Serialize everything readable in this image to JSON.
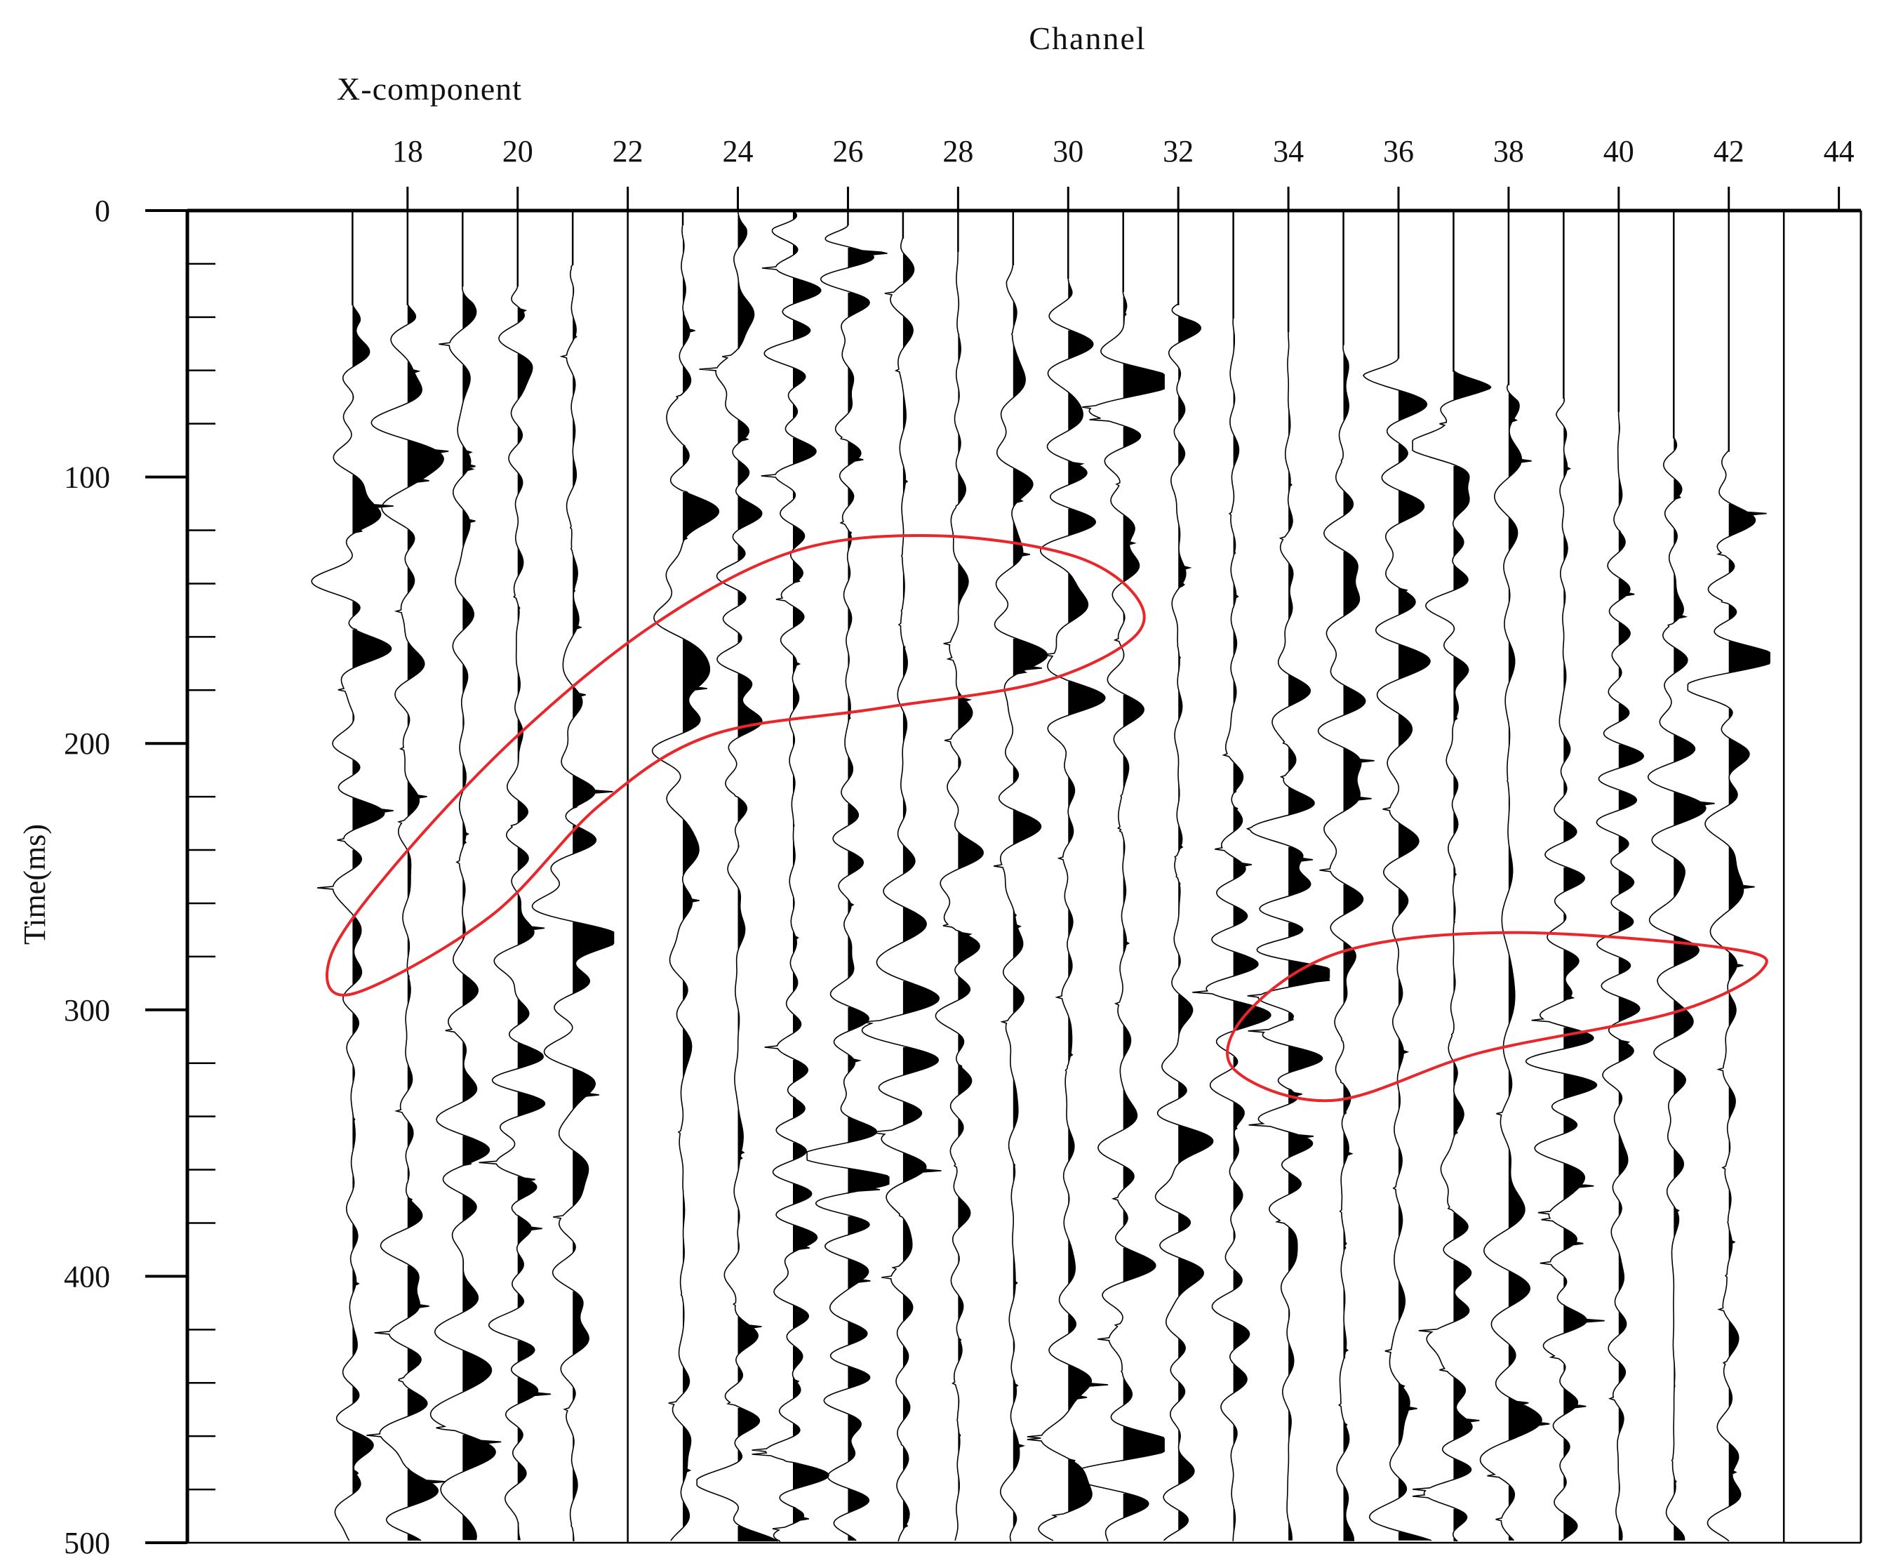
{
  "chart_data": {
    "type": "seismic-wiggle",
    "title": "Channel",
    "panel_label": "X-component",
    "xlabel": "Channel",
    "ylabel": "Time(ms)",
    "x_tick_labels": [
      "18",
      "20",
      "22",
      "24",
      "26",
      "28",
      "30",
      "32",
      "34",
      "36",
      "38",
      "40",
      "42",
      "44"
    ],
    "x_ticks": [
      18,
      20,
      22,
      24,
      26,
      28,
      30,
      32,
      34,
      36,
      38,
      40,
      42,
      44
    ],
    "y_tick_labels": [
      "0",
      "100",
      "200",
      "300",
      "400",
      "500"
    ],
    "y_ticks": [
      0,
      100,
      200,
      300,
      400,
      500
    ],
    "y_minor_step": 20,
    "xlim": [
      14,
      44.4
    ],
    "ylim": [
      0,
      500
    ],
    "y_inverted": true,
    "grid": false,
    "panel_divider_channel": 22,
    "traces": [
      {
        "channel": 17,
        "start_ms": 35,
        "fill_color": "#000000"
      },
      {
        "channel": 18,
        "start_ms": 35,
        "fill_color": "#000000"
      },
      {
        "channel": 19,
        "start_ms": 28,
        "fill_color": "#000000"
      },
      {
        "channel": 20,
        "start_ms": 28,
        "fill_color": "#000000"
      },
      {
        "channel": 21,
        "start_ms": 20,
        "fill_color": "#000000"
      },
      {
        "channel": 23,
        "start_ms": 5,
        "fill_color": "#000000"
      },
      {
        "channel": 24,
        "start_ms": 0,
        "fill_color": "#000000"
      },
      {
        "channel": 25,
        "start_ms": 0,
        "fill_color": "#000000"
      },
      {
        "channel": 26,
        "start_ms": 5,
        "fill_color": "#000000"
      },
      {
        "channel": 27,
        "start_ms": 10,
        "fill_color": "#000000"
      },
      {
        "channel": 28,
        "start_ms": 15,
        "fill_color": "#000000"
      },
      {
        "channel": 29,
        "start_ms": 20,
        "fill_color": "#000000"
      },
      {
        "channel": 30,
        "start_ms": 25,
        "fill_color": "#000000"
      },
      {
        "channel": 31,
        "start_ms": 30,
        "fill_color": "#000000"
      },
      {
        "channel": 32,
        "start_ms": 35,
        "fill_color": "#000000"
      },
      {
        "channel": 33,
        "start_ms": 40,
        "fill_color": "#000000"
      },
      {
        "channel": 34,
        "start_ms": 45,
        "fill_color": "#000000"
      },
      {
        "channel": 35,
        "start_ms": 50,
        "fill_color": "#000000"
      },
      {
        "channel": 36,
        "start_ms": 55,
        "fill_color": "#000000"
      },
      {
        "channel": 37,
        "start_ms": 60,
        "fill_color": "#000000"
      },
      {
        "channel": 38,
        "start_ms": 65,
        "fill_color": "#000000"
      },
      {
        "channel": 39,
        "start_ms": 70,
        "fill_color": "#000000"
      },
      {
        "channel": 40,
        "start_ms": 75,
        "fill_color": "#000000"
      },
      {
        "channel": 41,
        "start_ms": 85,
        "fill_color": "#000000"
      },
      {
        "channel": 42,
        "start_ms": 90,
        "fill_color": "#000000"
      }
    ],
    "annotations": [
      {
        "shape": "closed-curve",
        "color": "#e8262b",
        "points": [
          [
            17.0,
            294
          ],
          [
            19.5,
            265
          ],
          [
            21.5,
            223
          ],
          [
            23.5,
            197
          ],
          [
            26.5,
            187
          ],
          [
            29.5,
            177
          ],
          [
            31.2,
            160
          ],
          [
            31.2,
            144
          ],
          [
            30.0,
            129
          ],
          [
            27.5,
            122
          ],
          [
            25.0,
            128
          ],
          [
            22.5,
            155
          ],
          [
            20.0,
            197
          ],
          [
            17.8,
            245
          ],
          [
            16.6,
            280
          ]
        ]
      },
      {
        "shape": "closed-curve",
        "color": "#e8262b",
        "points": [
          [
            34.8,
            334
          ],
          [
            37.5,
            316
          ],
          [
            41.0,
            301
          ],
          [
            42.6,
            285
          ],
          [
            42.0,
            277
          ],
          [
            38.0,
            271
          ],
          [
            35.0,
            278
          ],
          [
            33.3,
            300
          ],
          [
            33.0,
            322
          ]
        ]
      }
    ]
  }
}
